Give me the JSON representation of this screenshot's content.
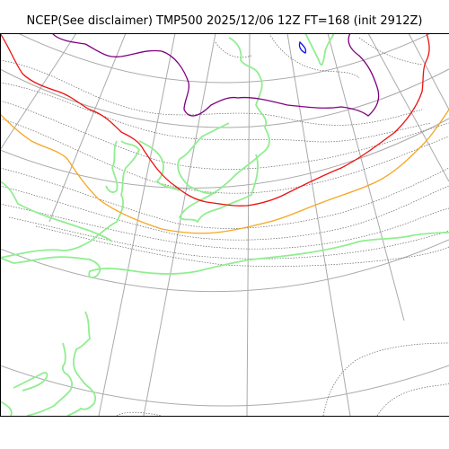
{
  "title": "NCEP(See disclaimer) TMP500 2025/12/06 12Z FT=168 (init 2912Z)",
  "colors": {
    "graticule": "#aaaaaa",
    "isotherm_thin": "#666666",
    "coastline": "#90ee90",
    "purple_contour": "#800080",
    "red_contour": "#ee1111",
    "orange_contour": "#f5a623",
    "blue_contour": "#1010ee",
    "background": "#ffffff",
    "frame": "#000000"
  },
  "map_elements": [
    "graticule-meridians",
    "graticule-parallels",
    "temperature-isotherms",
    "coastlines",
    "highlighted-contours"
  ]
}
